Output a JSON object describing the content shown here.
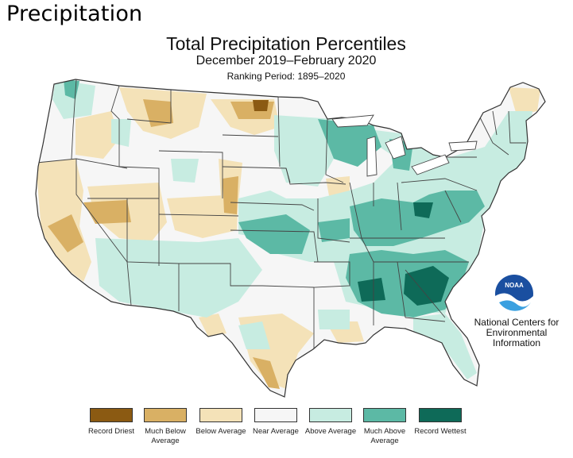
{
  "slide_title": "Precipitation",
  "map": {
    "title": "Total Precipitation Percentiles",
    "subtitle": "December 2019–February 2020",
    "ranking_period": "Ranking Period: 1895–2020",
    "region": "Contiguous United States"
  },
  "legend": [
    {
      "label": "Record Driest",
      "color": "#8b5a12"
    },
    {
      "label": "Much Below Average",
      "color": "#d9b064"
    },
    {
      "label": "Below Average",
      "color": "#f4e2b8"
    },
    {
      "label": "Near Average",
      "color": "#f6f6f6"
    },
    {
      "label": "Above Average",
      "color": "#c7ece1"
    },
    {
      "label": "Much Above Average",
      "color": "#5cb9a5"
    },
    {
      "label": "Record Wettest",
      "color": "#0e6a58"
    }
  ],
  "logo": {
    "text": "NOAA",
    "icon": "noaa-logo-icon"
  },
  "agency": "National Centers for Environmental Information"
}
